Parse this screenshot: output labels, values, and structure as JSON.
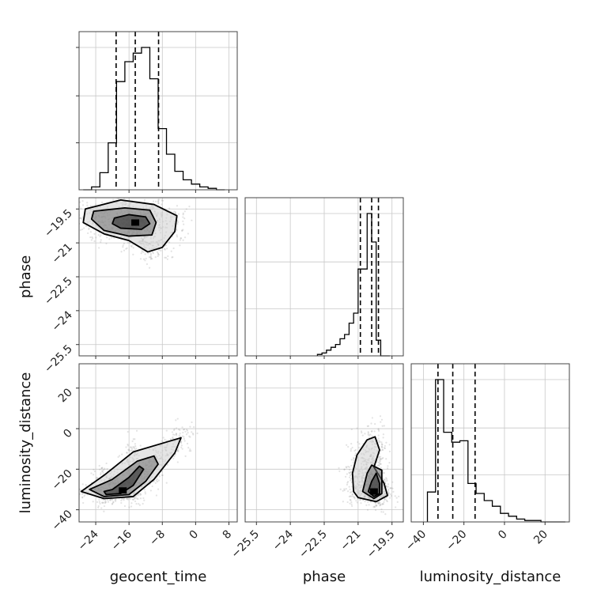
{
  "chart_data": {
    "type": "corner",
    "parameters": [
      "geocent_time",
      "phase",
      "luminosity_distance"
    ],
    "axis_labels": {
      "x": [
        "geocent_time",
        "phase",
        "luminosity_distance"
      ],
      "y": [
        "",
        "phase",
        "luminosity_distance"
      ]
    },
    "ranges": [
      [
        -28,
        10
      ],
      [
        -26,
        -19
      ],
      [
        -46,
        32
      ]
    ],
    "ticks": {
      "geocent_time": [
        -24,
        -16,
        -8,
        0,
        8
      ],
      "phase": [
        -25.5,
        -24.0,
        -22.5,
        -21.0,
        -19.5
      ],
      "luminosity_distance": [
        -40,
        -20,
        0,
        20
      ]
    },
    "quantile_lines": {
      "geocent_time": [
        -19.1,
        -14.5,
        -8.9
      ],
      "phase": [
        -20.9,
        -20.4,
        -20.1
      ],
      "luminosity_distance": [
        -32.8,
        -25.5,
        -14.5
      ]
    },
    "histograms": {
      "geocent_time": {
        "edges": [
          -27,
          -25,
          -23,
          -21,
          -19,
          -17,
          -15,
          -13,
          -11,
          -9,
          -7,
          -5,
          -3,
          -1,
          1,
          3,
          5,
          7
        ],
        "counts": [
          0.0,
          0.02,
          0.12,
          0.33,
          0.76,
          0.9,
          0.96,
          1.0,
          0.78,
          0.43,
          0.25,
          0.13,
          0.07,
          0.04,
          0.02,
          0.01,
          0.0
        ]
      },
      "phase": {
        "edges": [
          -22.8,
          -22.6,
          -22.4,
          -22.2,
          -22.0,
          -21.8,
          -21.6,
          -21.4,
          -21.2,
          -21.0,
          -20.8,
          -20.6,
          -20.4,
          -20.2,
          -20.0,
          -19.8,
          -19.6
        ],
        "counts": [
          0.01,
          0.02,
          0.04,
          0.06,
          0.08,
          0.12,
          0.15,
          0.23,
          0.3,
          0.61,
          0.61,
          1.0,
          0.8,
          0.11,
          0.0,
          0.0
        ]
      },
      "luminosity_distance": {
        "edges": [
          -38,
          -34,
          -30,
          -26,
          -22,
          -18,
          -14,
          -10,
          -6,
          -2,
          2,
          6,
          10,
          14,
          18,
          22,
          26,
          30
        ],
        "counts": [
          0.21,
          1.0,
          0.63,
          0.56,
          0.57,
          0.27,
          0.2,
          0.15,
          0.11,
          0.06,
          0.04,
          0.02,
          0.01,
          0.01,
          0.0,
          0.0,
          0.0
        ]
      }
    },
    "joint_2d": [
      {
        "x_param": "geocent_time",
        "y_param": "phase",
        "center": [
          -14.5,
          -20.1
        ],
        "contours": [
          [
            [
              -19.5,
              -19.9
            ],
            [
              -16.0,
              -19.75
            ],
            [
              -12.0,
              -19.85
            ],
            [
              -11.0,
              -20.15
            ],
            [
              -13.0,
              -20.4
            ],
            [
              -18.0,
              -20.35
            ],
            [
              -20.0,
              -20.15
            ]
          ],
          [
            [
              -24.5,
              -19.6
            ],
            [
              -17.0,
              -19.45
            ],
            [
              -11.0,
              -19.55
            ],
            [
              -9.5,
              -20.1
            ],
            [
              -10.5,
              -20.65
            ],
            [
              -16.0,
              -20.7
            ],
            [
              -22.0,
              -20.45
            ],
            [
              -25.0,
              -19.95
            ]
          ],
          [
            [
              -26.5,
              -19.5
            ],
            [
              -18.0,
              -19.1
            ],
            [
              -10.0,
              -19.3
            ],
            [
              -4.5,
              -19.8
            ],
            [
              -5.0,
              -20.5
            ],
            [
              -8.0,
              -21.2
            ],
            [
              -11.5,
              -21.4
            ],
            [
              -16.0,
              -20.9
            ],
            [
              -22.0,
              -20.6
            ],
            [
              -27.0,
              -20.1
            ]
          ]
        ]
      },
      {
        "x_param": "geocent_time",
        "y_param": "luminosity_distance",
        "center": [
          -17.5,
          -30.5
        ],
        "contours": [
          [
            [
              -22.0,
              -31.0
            ],
            [
              -20.0,
              -30.0
            ],
            [
              -16.0,
              -24.0
            ],
            [
              -13.5,
              -18.5
            ],
            [
              -12.5,
              -20.0
            ],
            [
              -15.0,
              -28.0
            ],
            [
              -18.0,
              -32.0
            ],
            [
              -21.5,
              -32.5
            ]
          ],
          [
            [
              -25.5,
              -30.0
            ],
            [
              -20.0,
              -25.0
            ],
            [
              -14.0,
              -16.0
            ],
            [
              -10.0,
              -13.5
            ],
            [
              -9.0,
              -17.5
            ],
            [
              -12.0,
              -26.0
            ],
            [
              -16.0,
              -32.5
            ],
            [
              -22.0,
              -33.5
            ]
          ],
          [
            [
              -27.5,
              -31.0
            ],
            [
              -22.0,
              -23.0
            ],
            [
              -15.0,
              -11.5
            ],
            [
              -6.0,
              -6.0
            ],
            [
              -3.5,
              -4.5
            ],
            [
              -5.0,
              -12.0
            ],
            [
              -10.0,
              -25.0
            ],
            [
              -15.0,
              -33.5
            ],
            [
              -22.0,
              -34.5
            ]
          ]
        ]
      },
      {
        "x_param": "phase",
        "y_param": "luminosity_distance",
        "center": [
          -20.3,
          -31.0
        ],
        "contours": [
          [
            [
              -20.55,
              -31.0
            ],
            [
              -20.4,
              -26.0
            ],
            [
              -20.2,
              -22.0
            ],
            [
              -20.05,
              -27.0
            ],
            [
              -20.05,
              -32.0
            ],
            [
              -20.3,
              -33.5
            ]
          ],
          [
            [
              -20.8,
              -31.0
            ],
            [
              -20.6,
              -22.0
            ],
            [
              -20.4,
              -18.0
            ],
            [
              -19.95,
              -20.5
            ],
            [
              -19.95,
              -32.0
            ],
            [
              -20.3,
              -34.5
            ]
          ],
          [
            [
              -21.2,
              -31.0
            ],
            [
              -21.25,
              -22.0
            ],
            [
              -21.05,
              -13.0
            ],
            [
              -20.6,
              -5.5
            ],
            [
              -20.25,
              -4.0
            ],
            [
              -20.05,
              -10.5
            ],
            [
              -20.3,
              -19.0
            ],
            [
              -19.85,
              -27.0
            ],
            [
              -19.7,
              -33.0
            ],
            [
              -20.2,
              -36.0
            ],
            [
              -21.0,
              -34.0
            ]
          ]
        ]
      }
    ],
    "grid": true
  }
}
